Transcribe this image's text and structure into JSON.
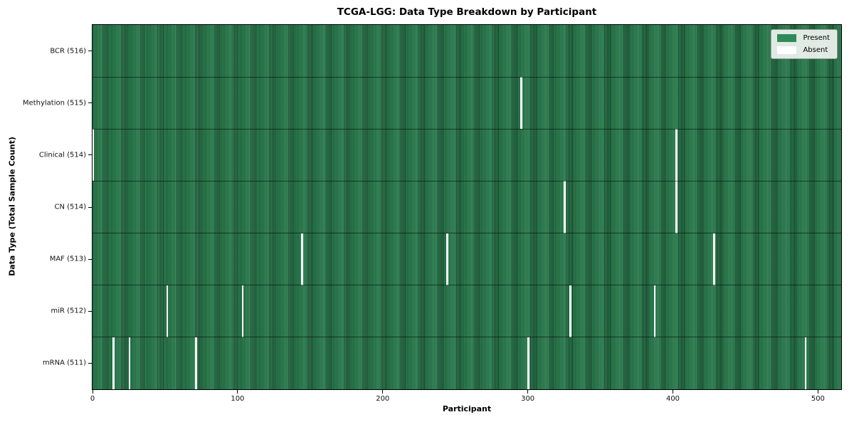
{
  "chart_data": {
    "type": "heatmap",
    "title": "TCGA-LGG: Data Type Breakdown by Participant",
    "xlabel": "Participant",
    "ylabel": "Data Type (Total Sample Count)",
    "n_participants": 516,
    "xlim": [
      0,
      516
    ],
    "x_ticks": [
      0,
      100,
      200,
      300,
      400,
      500
    ],
    "grid": false,
    "legend_position": "upper right",
    "legend": [
      {
        "label": "Present",
        "color": "#2e8b57"
      },
      {
        "label": "Absent",
        "color": "#ffffff"
      }
    ],
    "colors": {
      "present": "#2e8b57",
      "present_edge": "#173f28",
      "absent": "#ffffff"
    },
    "rows": [
      {
        "name": "BCR",
        "total": 516,
        "label": "BCR (516)",
        "absent_participants": []
      },
      {
        "name": "Methylation",
        "total": 515,
        "label": "Methylation (515)",
        "absent_participants": [
          295
        ]
      },
      {
        "name": "Clinical",
        "total": 514,
        "label": "Clinical (514)",
        "absent_participants": [
          0,
          402
        ]
      },
      {
        "name": "CN",
        "total": 514,
        "label": "CN (514)",
        "absent_participants": [
          325,
          402
        ]
      },
      {
        "name": "MAF",
        "total": 513,
        "label": "MAF (513)",
        "absent_participants": [
          144,
          244,
          428
        ]
      },
      {
        "name": "miR",
        "total": 512,
        "label": "miR (512)",
        "absent_participants": [
          51,
          103,
          329,
          387
        ]
      },
      {
        "name": "mRNA",
        "total": 511,
        "label": "mRNA (511)",
        "absent_participants": [
          14,
          25,
          71,
          300,
          491
        ]
      }
    ]
  }
}
